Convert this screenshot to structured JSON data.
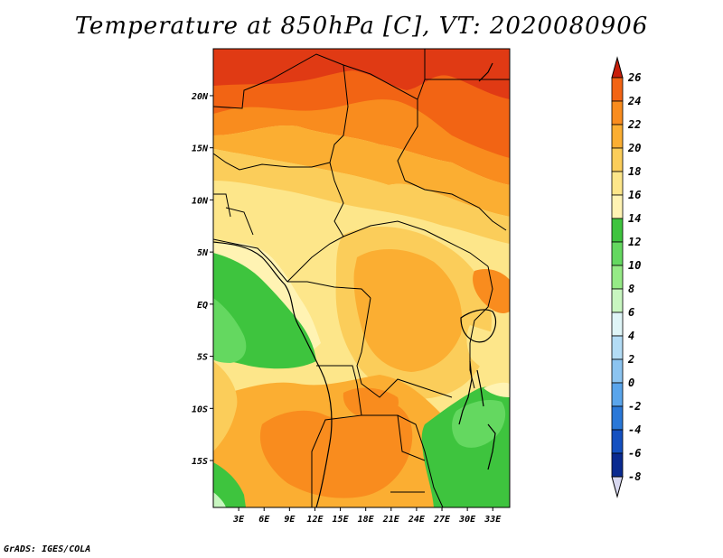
{
  "title": "Temperature at 850hPa [C], VT: 2020080906",
  "credit": "GrADS: IGES/COLA",
  "map": {
    "region": "Central Africa",
    "lon_range": [
      0,
      35
    ],
    "lat_range": [
      -19.5,
      24.5
    ],
    "lon_ticks": [
      {
        "value": 3,
        "label": "3E"
      },
      {
        "value": 6,
        "label": "6E"
      },
      {
        "value": 9,
        "label": "9E"
      },
      {
        "value": 12,
        "label": "12E"
      },
      {
        "value": 15,
        "label": "15E"
      },
      {
        "value": 18,
        "label": "18E"
      },
      {
        "value": 21,
        "label": "21E"
      },
      {
        "value": 24,
        "label": "24E"
      },
      {
        "value": 27,
        "label": "27E"
      },
      {
        "value": 30,
        "label": "30E"
      },
      {
        "value": 33,
        "label": "33E"
      }
    ],
    "lat_ticks": [
      {
        "value": 20,
        "label": "20N"
      },
      {
        "value": 15,
        "label": "15N"
      },
      {
        "value": 10,
        "label": "10N"
      },
      {
        "value": 5,
        "label": "5N"
      },
      {
        "value": 0,
        "label": "EQ"
      },
      {
        "value": -5,
        "label": "5S"
      },
      {
        "value": -10,
        "label": "10S"
      },
      {
        "value": -15,
        "label": "15S"
      }
    ]
  },
  "colorbar": {
    "labels": [
      "26",
      "24",
      "22",
      "20",
      "18",
      "16",
      "14",
      "12",
      "10",
      "8",
      "6",
      "4",
      "2",
      "0",
      "-2",
      "-4",
      "-6",
      "-8"
    ],
    "colors_top_to_bottom": [
      "#e03a14",
      "#f26414",
      "#f98c1e",
      "#fbae32",
      "#fbcd5a",
      "#fde68a",
      "#fff3b3",
      "#3ec43e",
      "#64d860",
      "#95ea86",
      "#c8f6c0",
      "#dff5f7",
      "#b3dcf5",
      "#8cc4f0",
      "#5aa5eb",
      "#2a78d8",
      "#1450c0",
      "#0a2a90",
      "#061466",
      "#d8d8f0"
    ],
    "top_arrow_color": "#c81e0a",
    "bottom_arrow_color": "#d8d8f0"
  }
}
